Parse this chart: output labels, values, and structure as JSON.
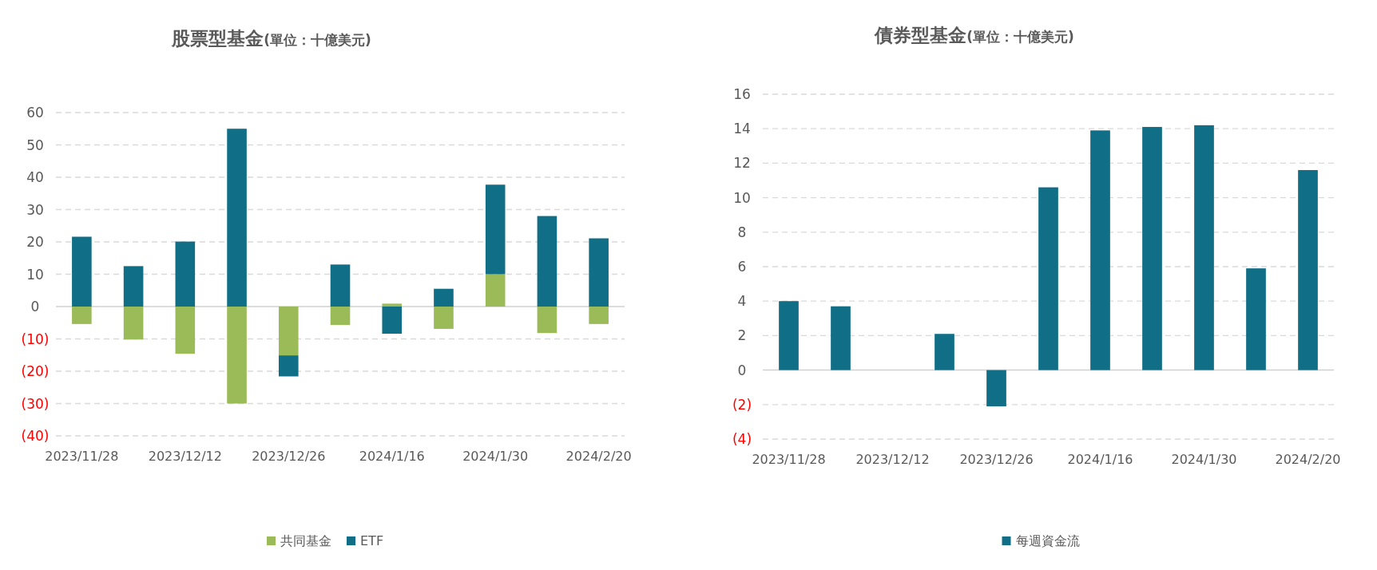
{
  "chart_data": [
    {
      "type": "bar",
      "title": "股票型基金",
      "subtitle": "(單位：十億美元)",
      "categories": [
        "2023/11/28",
        null,
        "2023/12/12",
        null,
        "2023/12/26",
        null,
        "2024/1/16",
        null,
        "2024/1/30",
        null,
        "2024/2/20"
      ],
      "stacked": true,
      "ylim": [
        -40,
        60
      ],
      "yticks": [
        {
          "value": -40,
          "label": "(40)"
        },
        {
          "value": -30,
          "label": "(30)"
        },
        {
          "value": -20,
          "label": "(20)"
        },
        {
          "value": -10,
          "label": "(10)"
        },
        0,
        10,
        20,
        30,
        40,
        50,
        60
      ],
      "grid": "y",
      "legend": "bottom",
      "series": [
        {
          "name": "共同基金",
          "color": "#9bbb59",
          "values": [
            -5.4,
            -10.2,
            -14.6,
            -30,
            -15.1,
            -5.7,
            0.9,
            -6.9,
            10,
            -8.2,
            -5.4
          ]
        },
        {
          "name": "ETF",
          "color": "#106e87",
          "values": [
            21.6,
            12.5,
            20.1,
            55,
            -6.5,
            13,
            -8.4,
            5.5,
            27.7,
            28,
            21.1
          ]
        }
      ]
    },
    {
      "type": "bar",
      "title": "債券型基金",
      "subtitle": "(單位：十億美元)",
      "categories": [
        "2023/11/28",
        null,
        "2023/12/12",
        null,
        "2023/12/26",
        null,
        "2024/1/16",
        null,
        "2024/1/30",
        null,
        "2024/2/20"
      ],
      "ylim": [
        -4,
        16
      ],
      "yticks": [
        {
          "value": -4,
          "label": "(4)"
        },
        {
          "value": -2,
          "label": "(2)"
        },
        0,
        2,
        4,
        6,
        8,
        10,
        12,
        14,
        16
      ],
      "grid": "y",
      "legend": "bottom",
      "series": [
        {
          "name": "每週資金流",
          "color": "#106e87",
          "values": [
            4.0,
            3.7,
            null,
            2.1,
            -2.1,
            10.6,
            13.9,
            14.1,
            14.2,
            5.9,
            11.6
          ]
        }
      ]
    }
  ]
}
